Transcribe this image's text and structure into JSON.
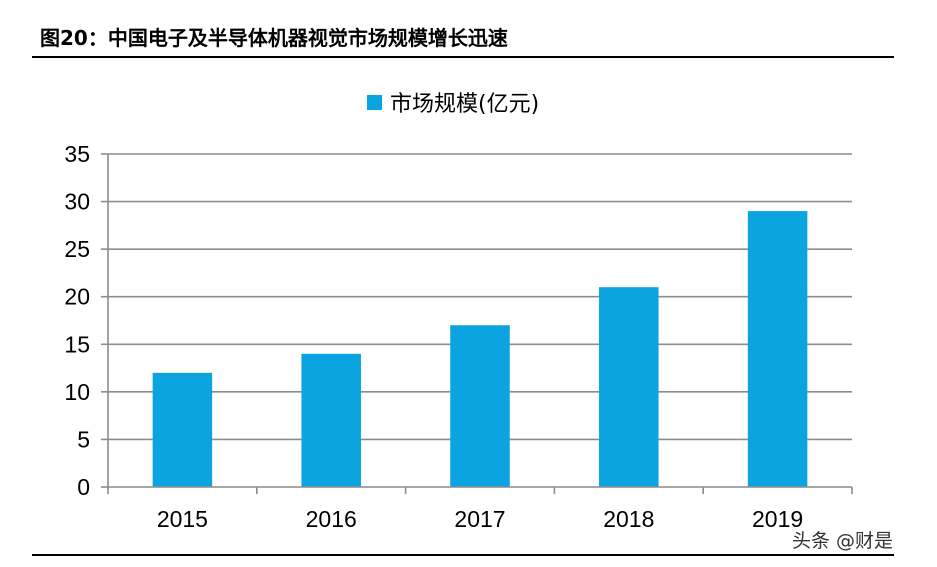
{
  "figure": {
    "title": "图20：中国电子及半导体机器视觉市场规模增长迅速"
  },
  "watermark": "头条 @财是",
  "chart_data": {
    "type": "bar",
    "categories": [
      "2015",
      "2016",
      "2017",
      "2018",
      "2019"
    ],
    "series": [
      {
        "name": "市场规模(亿元)",
        "values": [
          12,
          14,
          17,
          21,
          29
        ],
        "color": "#0aa5e1"
      }
    ],
    "ylim": [
      0,
      35
    ],
    "yticks": [
      0,
      5,
      10,
      15,
      20,
      25,
      30,
      35
    ],
    "grid": true,
    "legend": "top-center",
    "xlabel": "",
    "ylabel": ""
  }
}
